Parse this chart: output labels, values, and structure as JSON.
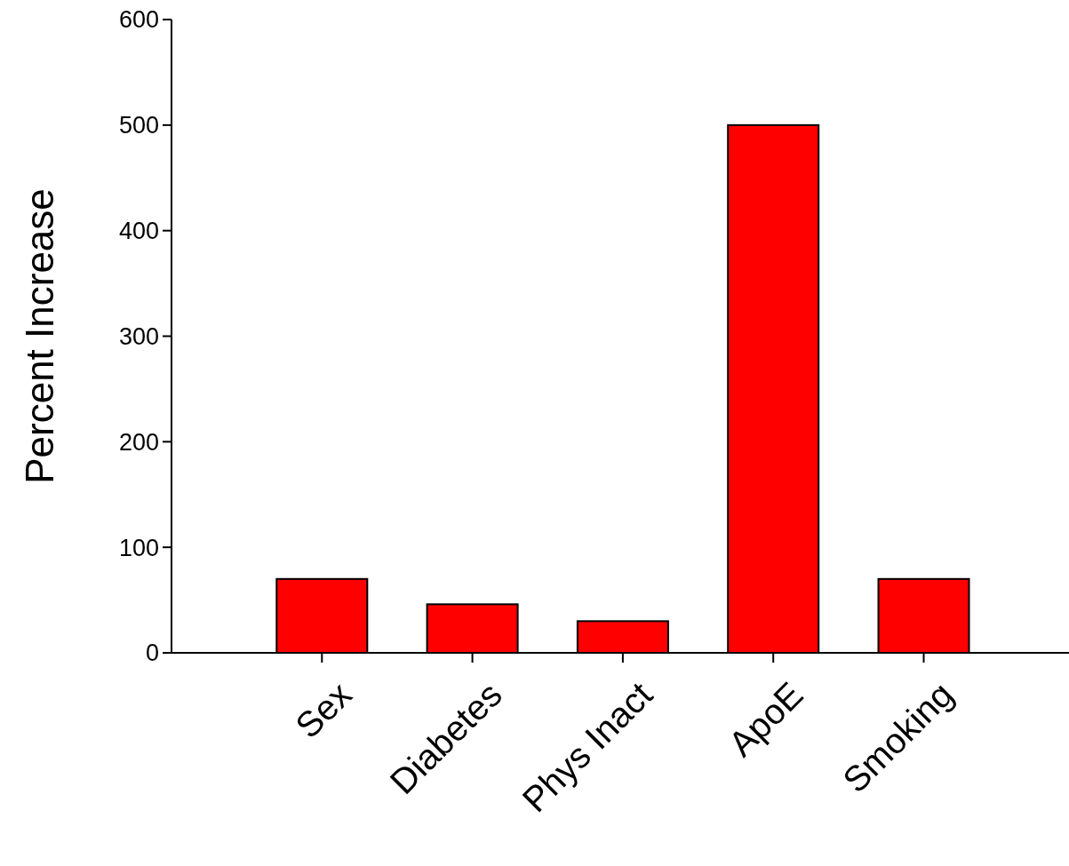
{
  "chart_data": {
    "type": "bar",
    "ylabel": "Percent Increase",
    "categories": [
      "Sex",
      "Diabetes",
      "Phys Inact",
      "ApoE",
      "Smoking"
    ],
    "values": [
      70,
      46,
      30,
      500,
      70
    ],
    "color": "#ff0000",
    "ylim": [
      0,
      600
    ],
    "yticks": [
      0,
      100,
      200,
      300,
      400,
      500,
      600
    ]
  }
}
